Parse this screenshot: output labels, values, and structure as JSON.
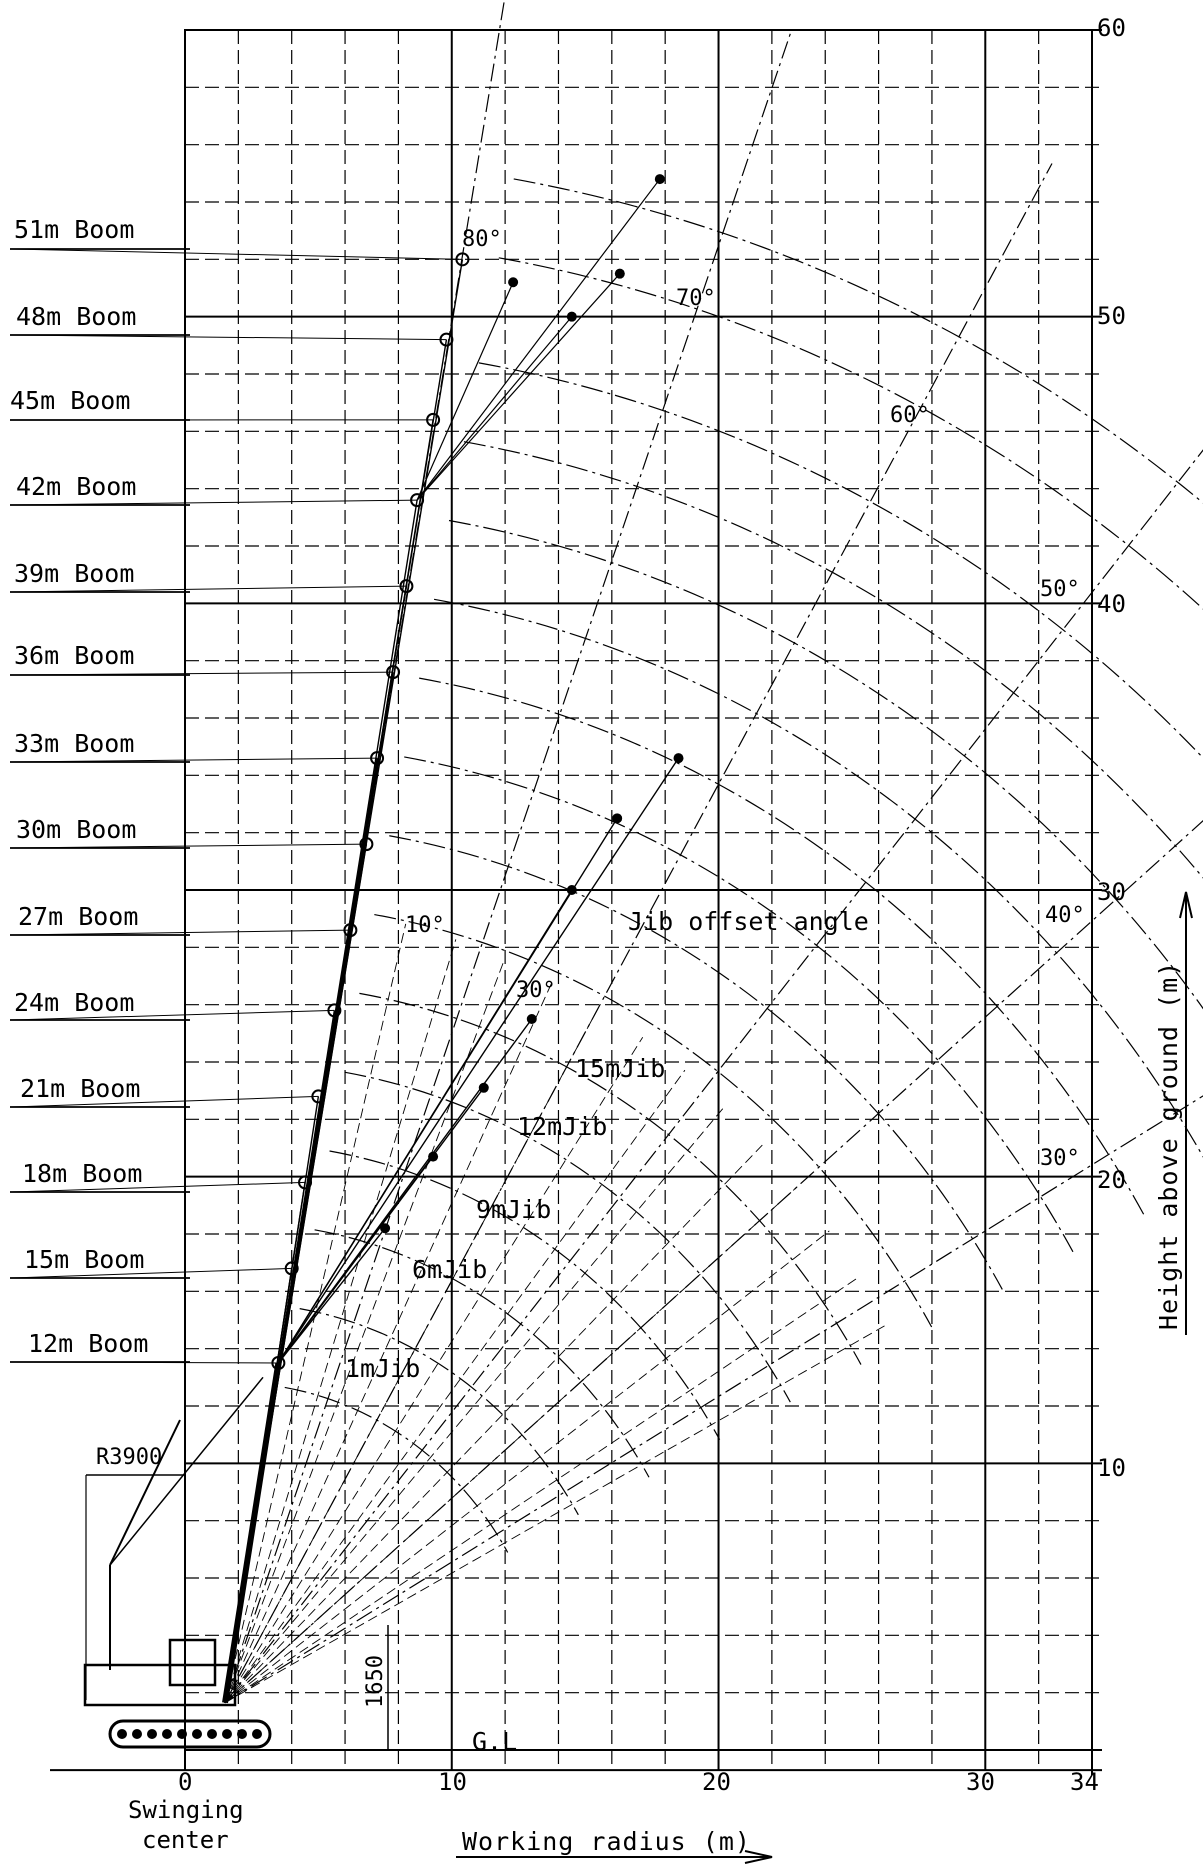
{
  "boom_labels": [
    "51m Boom",
    "48m Boom",
    "45m Boom",
    "42m Boom",
    "39m Boom",
    "36m Boom",
    "33m Boom",
    "30m Boom",
    "27m Boom",
    "24m Boom",
    "21m Boom",
    "18m Boom",
    "15m Boom",
    "12m Boom"
  ],
  "x_axis": {
    "title": "Working radius (m)",
    "ticks": [
      "0",
      "10",
      "20",
      "30",
      "34"
    ],
    "tick_values": [
      0,
      10,
      20,
      30,
      34
    ],
    "origin_label_line1": "Swinging",
    "origin_label_line2": "center",
    "range": [
      -5,
      34
    ]
  },
  "y_axis": {
    "title": "Height above ground (m)",
    "ticks": [
      "10",
      "20",
      "30",
      "40",
      "50",
      "60"
    ],
    "tick_values": [
      10,
      20,
      30,
      40,
      50,
      60
    ],
    "range": [
      0,
      60
    ]
  },
  "boom_angle_labels": [
    "80°",
    "70°",
    "60°",
    "50°",
    "40°",
    "30°"
  ],
  "jib_offset": {
    "title": "Jib offset angle",
    "angles": [
      "10°",
      "30°"
    ]
  },
  "jib_labels": [
    "15mJib",
    "12mJib",
    "9mJib",
    "6mJib",
    "1mJib"
  ],
  "dimensions": {
    "tail_radius": "R3900",
    "pivot_height": "1650",
    "ground_line": "G.L"
  },
  "colors": {
    "ink": "#000000",
    "background": "#ffffff"
  }
}
